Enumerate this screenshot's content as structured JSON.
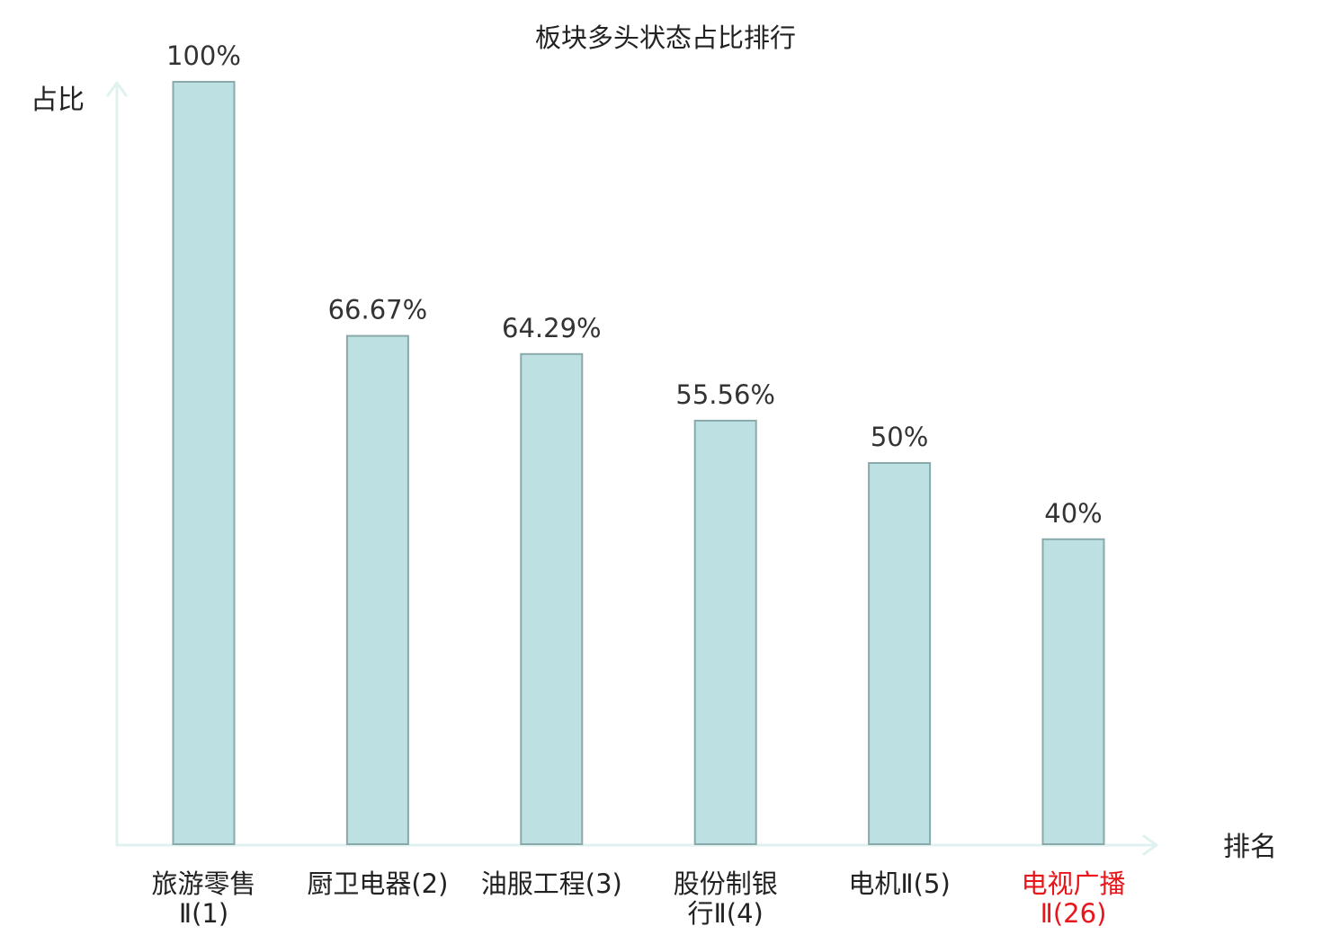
{
  "chart_data": {
    "type": "bar",
    "title": "板块多头状态占比排行",
    "ylabel": "占比",
    "xlabel": "排名",
    "ylim": [
      0,
      100
    ],
    "grid": false,
    "categories": [
      {
        "lines": [
          "旅游零售",
          "Ⅱ(1)"
        ],
        "highlight": false
      },
      {
        "lines": [
          "厨卫电器(2)"
        ],
        "highlight": false
      },
      {
        "lines": [
          "油服工程(3)"
        ],
        "highlight": false
      },
      {
        "lines": [
          "股份制银",
          "行Ⅱ(4)"
        ],
        "highlight": false
      },
      {
        "lines": [
          "电机Ⅱ(5)"
        ],
        "highlight": false
      },
      {
        "lines": [
          "电视广播",
          "Ⅱ(26)"
        ],
        "highlight": true
      }
    ],
    "values": [
      100,
      66.67,
      64.29,
      55.56,
      50,
      40
    ],
    "value_labels": [
      "100%",
      "66.67%",
      "64.29%",
      "55.56%",
      "50%",
      "40%"
    ],
    "colors": {
      "bar_fill": "#bde0e2",
      "bar_stroke": "#8aa9ab",
      "axis": "#e0f2ef",
      "text": "#222222",
      "value_text": "#333333",
      "highlight": "#e8161b"
    }
  }
}
